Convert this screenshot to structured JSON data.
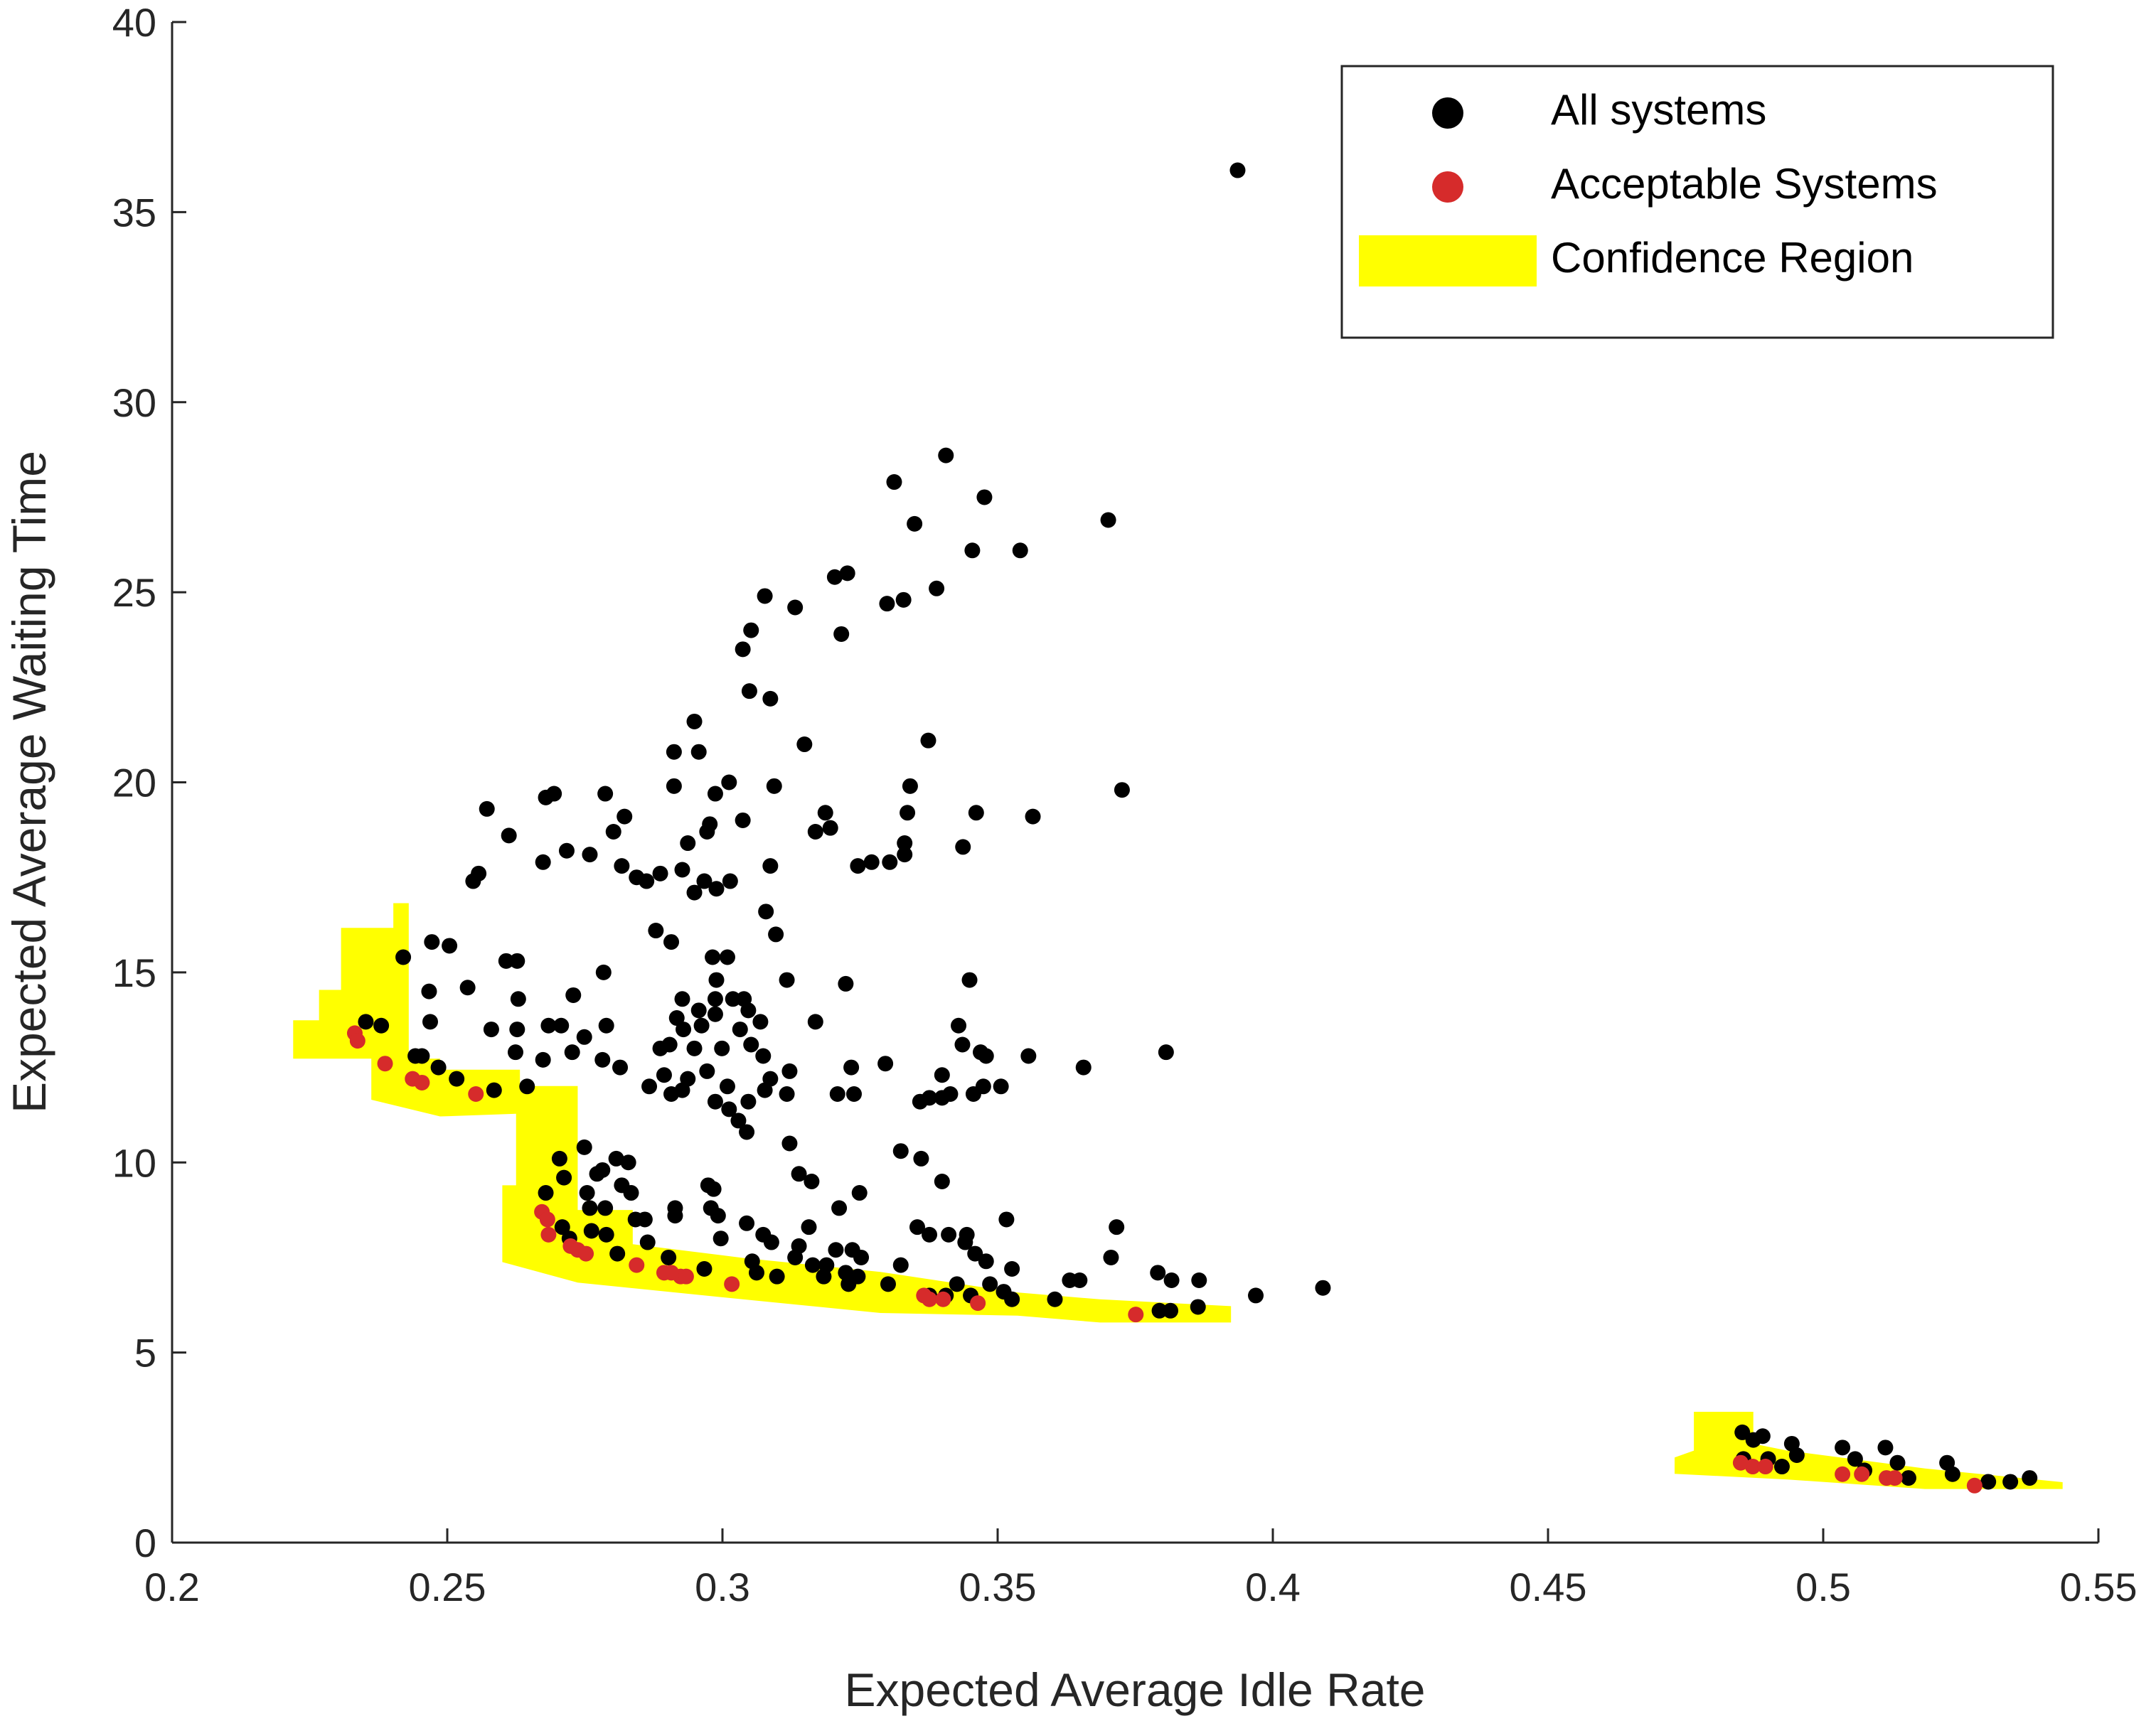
{
  "chart_data": {
    "type": "scatter",
    "xlabel": "Expected Average Idle Rate",
    "ylabel": "Expected Average Waiting Time",
    "xlim": [
      0.2,
      0.55
    ],
    "ylim": [
      0,
      40
    ],
    "xticks": [
      0.2,
      0.25,
      0.3,
      0.35,
      0.4,
      0.45,
      0.5,
      0.55
    ],
    "yticks": [
      0,
      5,
      10,
      15,
      20,
      25,
      30,
      35,
      40
    ],
    "legend_position": "upper right",
    "series": [
      {
        "name": "All systems",
        "color": "#000000",
        "x": [
          0.3936,
          0.3406,
          0.3312,
          0.3476,
          0.3349,
          0.3701,
          0.3454,
          0.3541,
          0.3227,
          0.3204,
          0.3389,
          0.3329,
          0.3299,
          0.3077,
          0.3132,
          0.3216,
          0.3052,
          0.3037,
          0.3049,
          0.3087,
          0.2949,
          0.3149,
          0.3374,
          0.2912,
          0.2957,
          0.3012,
          0.3094,
          0.3341,
          0.3726,
          0.2912,
          0.2987,
          0.2694,
          0.2679,
          0.2787,
          0.2572,
          0.3187,
          0.3461,
          0.3564,
          0.2822,
          0.2977,
          0.3037,
          0.3336,
          0.2802,
          0.2972,
          0.3169,
          0.3196,
          0.3331,
          0.2612,
          0.2717,
          0.2759,
          0.2937,
          0.3437,
          0.2674,
          0.2817,
          0.2844,
          0.2887,
          0.2927,
          0.3014,
          0.3087,
          0.3246,
          0.3271,
          0.3304,
          0.3331,
          0.2547,
          0.2557,
          0.2862,
          0.2967,
          0.2949,
          0.2989,
          0.3079,
          0.2879,
          0.3097,
          0.2907,
          0.2472,
          0.2504,
          0.242,
          0.2607,
          0.2627,
          0.2784,
          0.2982,
          0.3009,
          0.2989,
          0.3117,
          0.3224,
          0.3449,
          0.2537,
          0.2467,
          0.2629,
          0.2729,
          0.2927,
          0.2987,
          0.3019,
          0.3039,
          0.2957,
          0.3047,
          0.2917,
          0.2962,
          0.2987,
          0.3069,
          0.3169,
          0.3429,
          0.2469,
          0.2684,
          0.2707,
          0.2789,
          0.258,
          0.2627,
          0.2749,
          0.2929,
          0.3032,
          0.2904,
          0.3436,
          0.2999,
          0.3806,
          0.3469,
          0.3479,
          0.3556,
          0.2887,
          0.2949,
          0.3052,
          0.3074,
          0.2624,
          0.2674,
          0.2727,
          0.2782,
          0.3656,
          0.3234,
          0.3296,
          0.2442,
          0.2454,
          0.2484,
          0.2894,
          0.2937,
          0.2972,
          0.3009,
          0.3087,
          0.3122,
          0.2814,
          0.3399,
          0.3414,
          0.3474,
          0.3506,
          0.2517,
          0.2352,
          0.238,
          0.2645,
          0.2867,
          0.2907,
          0.2927,
          0.2987,
          0.3047,
          0.3077,
          0.3117,
          0.3209,
          0.3239,
          0.3359,
          0.3376,
          0.3399,
          0.3456,
          0.2585,
          0.3012,
          0.3029,
          0.3044,
          0.3122,
          0.3324,
          0.3361,
          0.2749,
          0.2704,
          0.2807,
          0.2829,
          0.2712,
          0.2772,
          0.2782,
          0.3139,
          0.3162,
          0.2817,
          0.2974,
          0.2984,
          0.3399,
          0.2754,
          0.2834,
          0.3249,
          0.2679,
          0.2759,
          0.2787,
          0.2914,
          0.2979,
          0.2992,
          0.3212,
          0.2914,
          0.2859,
          0.2842,
          0.3044,
          0.3516,
          0.3716,
          0.3157,
          0.3354,
          0.3376,
          0.3411,
          0.3444,
          0.2709,
          0.2722,
          0.2762,
          0.2789,
          0.3074,
          0.3089,
          0.2864,
          0.2997,
          0.3139,
          0.3206,
          0.3236,
          0.3441,
          0.3459,
          0.3706,
          0.2809,
          0.2902,
          0.3132,
          0.3054,
          0.3164,
          0.3189,
          0.3252,
          0.3479,
          0.3324,
          0.3526,
          0.3062,
          0.3224,
          0.2967,
          0.3099,
          0.3184,
          0.3246,
          0.3791,
          0.3816,
          0.3229,
          0.3301,
          0.3631,
          0.3649,
          0.3866,
          0.3426,
          0.3486,
          0.3511,
          0.4091,
          0.3969,
          0.3376,
          0.3406,
          0.3451,
          0.3526,
          0.3604,
          0.3794,
          0.3814,
          0.3864,
          0.4853,
          0.489,
          0.4873,
          0.4943,
          0.5035,
          0.5113,
          0.5058,
          0.49,
          0.4952,
          0.5225,
          0.5135,
          0.4855,
          0.5235,
          0.5155,
          0.5375,
          0.534,
          0.53,
          0.5075,
          0.4925
        ],
        "values": [
          36.1,
          28.6,
          27.9,
          27.5,
          26.8,
          26.9,
          26.1,
          26.1,
          25.5,
          25.4,
          25.1,
          24.8,
          24.7,
          24.9,
          24.6,
          23.9,
          24.0,
          23.5,
          22.4,
          22.2,
          21.6,
          21.0,
          21.1,
          20.8,
          20.8,
          20.0,
          19.9,
          19.9,
          19.8,
          19.9,
          19.7,
          19.7,
          19.6,
          19.7,
          19.3,
          19.2,
          19.2,
          19.1,
          19.1,
          18.9,
          19.0,
          19.2,
          18.7,
          18.7,
          18.7,
          18.8,
          18.4,
          18.6,
          18.2,
          18.1,
          18.4,
          18.3,
          17.9,
          17.8,
          17.5,
          17.6,
          17.7,
          17.4,
          17.8,
          17.8,
          17.9,
          17.9,
          18.1,
          17.4,
          17.6,
          17.4,
          17.4,
          17.1,
          17.2,
          16.6,
          16.1,
          16.0,
          15.8,
          15.8,
          15.7,
          15.4,
          15.3,
          15.3,
          15.0,
          15.4,
          15.4,
          14.8,
          14.8,
          14.7,
          14.8,
          14.6,
          14.5,
          14.3,
          14.4,
          14.3,
          14.3,
          14.3,
          14.3,
          14.0,
          14.0,
          13.8,
          13.6,
          13.9,
          13.7,
          13.7,
          13.6,
          13.7,
          13.6,
          13.6,
          13.6,
          13.5,
          13.5,
          13.3,
          13.5,
          13.5,
          13.1,
          13.1,
          13.0,
          12.9,
          12.9,
          12.8,
          12.8,
          13.0,
          13.0,
          13.1,
          12.8,
          12.9,
          12.7,
          12.9,
          12.7,
          12.5,
          12.5,
          12.6,
          12.8,
          12.8,
          12.5,
          12.3,
          12.2,
          12.4,
          12.0,
          12.2,
          12.4,
          12.5,
          12.3,
          11.8,
          12.0,
          12.0,
          12.2,
          13.7,
          13.6,
          12.0,
          12.0,
          11.8,
          11.9,
          11.6,
          11.6,
          11.9,
          11.8,
          11.8,
          11.8,
          11.6,
          11.7,
          11.7,
          11.8,
          11.9,
          11.4,
          11.1,
          10.8,
          10.5,
          10.3,
          10.1,
          10.4,
          10.1,
          10.1,
          10.0,
          9.6,
          9.7,
          9.8,
          9.7,
          9.5,
          9.4,
          9.4,
          9.3,
          9.5,
          9.2,
          9.2,
          9.2,
          9.2,
          8.8,
          8.8,
          8.6,
          8.8,
          8.6,
          8.8,
          8.8,
          8.5,
          8.5,
          8.4,
          8.5,
          8.3,
          8.3,
          8.3,
          8.1,
          8.1,
          8.1,
          8.3,
          8.0,
          8.2,
          8.1,
          8.1,
          7.9,
          7.9,
          8.0,
          7.8,
          7.7,
          7.7,
          7.9,
          7.6,
          7.5,
          7.6,
          7.5,
          7.5,
          7.4,
          7.3,
          7.3,
          7.5,
          7.4,
          7.3,
          7.2,
          7.1,
          7.1,
          7.2,
          7.0,
          7.0,
          7.0,
          7.1,
          6.9,
          6.8,
          6.8,
          6.9,
          6.9,
          6.9,
          6.8,
          6.8,
          6.6,
          6.7,
          6.5,
          6.5,
          6.5,
          6.5,
          6.4,
          6.4,
          6.1,
          6.1,
          6.2,
          2.9,
          2.8,
          2.7,
          2.6,
          2.5,
          2.5,
          2.2,
          2.2,
          2.3,
          2.1,
          2.1,
          2.2,
          1.8,
          1.7,
          1.7,
          1.6,
          1.6,
          1.9,
          2.0
        ]
      },
      {
        "name": "Acceptable Systems",
        "color": "#d62b2b",
        "x": [
          0.2332,
          0.2337,
          0.2387,
          0.2437,
          0.2454,
          0.2552,
          0.2672,
          0.2682,
          0.2684,
          0.2724,
          0.2737,
          0.2752,
          0.2844,
          0.2894,
          0.2907,
          0.2924,
          0.2934,
          0.3017,
          0.3366,
          0.3376,
          0.3401,
          0.3464,
          0.3751,
          0.485,
          0.4872,
          0.4895,
          0.5035,
          0.507,
          0.5115,
          0.513,
          0.5275
        ],
        "values": [
          13.4,
          13.2,
          12.6,
          12.2,
          12.1,
          11.8,
          8.7,
          8.5,
          8.1,
          7.8,
          7.7,
          7.6,
          7.3,
          7.1,
          7.1,
          7.0,
          7.0,
          6.8,
          6.5,
          6.4,
          6.4,
          6.3,
          6.0,
          2.1,
          2.0,
          2.0,
          1.8,
          1.8,
          1.7,
          1.7,
          1.5
        ]
      },
      {
        "name": "Confidence Region",
        "color": "#ffff00",
        "kind": "area",
        "x": [
          0.222,
          0.2267,
          0.2267,
          0.2307,
          0.2307,
          0.2402,
          0.2402,
          0.243,
          0.243,
          0.2487,
          0.2487,
          0.2632,
          0.2632,
          0.2737,
          0.2737,
          0.2837,
          0.2837,
          0.3037,
          0.3287,
          0.3536,
          0.3686,
          0.3924,
          0.3924,
          0.3686,
          0.3536,
          0.3287,
          0.3037,
          0.2737,
          0.26,
          0.26,
          0.2625,
          0.2625,
          0.2487,
          0.2362,
          0.2362,
          0.222,
          null,
          0.4765,
          0.4873,
          0.4873,
          0.4935,
          0.5185,
          0.5435,
          0.5435,
          0.5185,
          0.4935,
          0.473,
          0.473,
          0.4765
        ],
        "values": [
          13.74,
          13.74,
          14.54,
          14.54,
          16.17,
          16.17,
          16.82,
          16.82,
          12.73,
          12.73,
          12.44,
          12.44,
          12.01,
          12.01,
          8.75,
          8.75,
          7.85,
          7.49,
          7.12,
          6.58,
          6.4,
          6.22,
          5.79,
          5.79,
          5.97,
          6.04,
          6.4,
          6.84,
          7.38,
          9.4,
          9.4,
          11.28,
          11.21,
          11.65,
          12.73,
          12.73,
          null,
          3.44,
          3.44,
          2.6,
          2.42,
          1.95,
          1.59,
          1.41,
          1.41,
          1.66,
          1.81,
          2.24,
          2.42
        ]
      }
    ]
  }
}
